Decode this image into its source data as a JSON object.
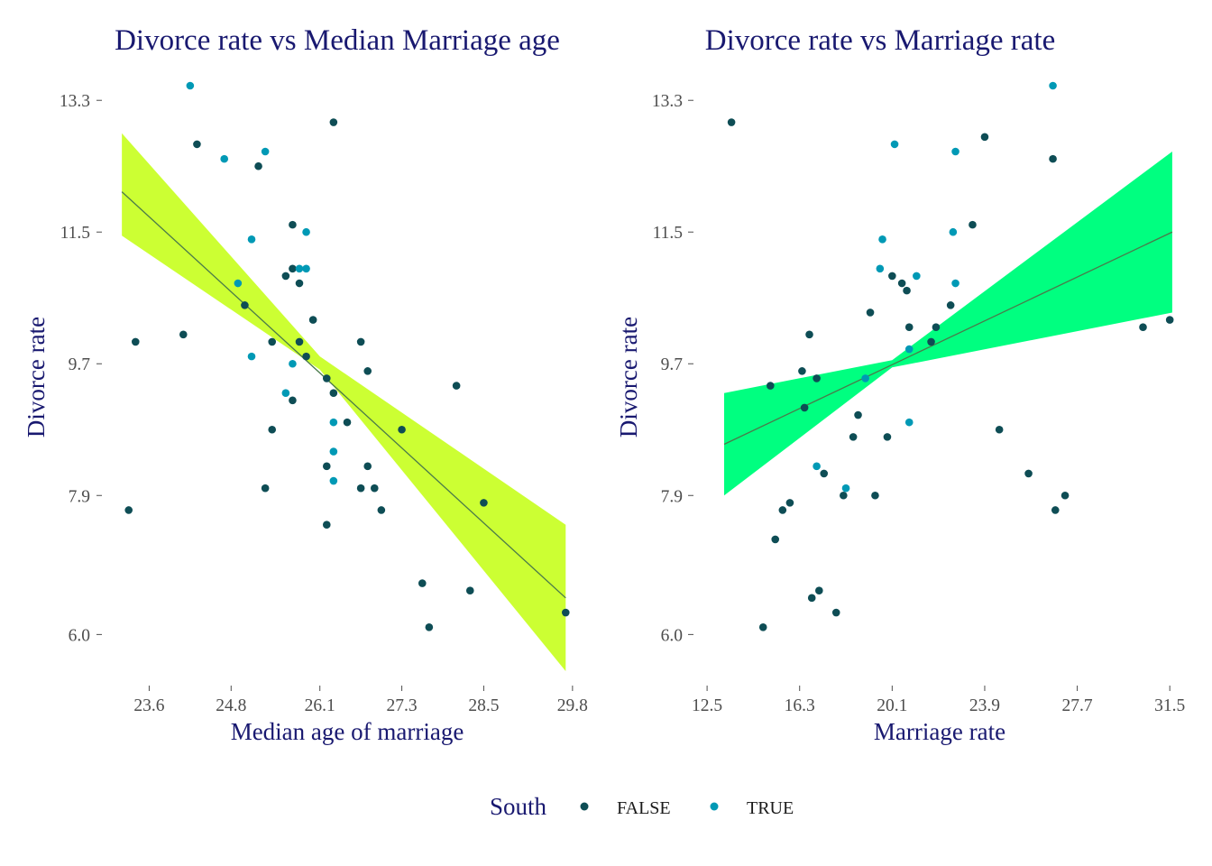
{
  "colors": {
    "title": "#191970",
    "false_point": "#0e4d55",
    "true_point": "#0099b5",
    "band_left": "#ccff33",
    "band_right": "#00ff80",
    "fit_line": "#4a7a4a",
    "tick": "#4d4d4d"
  },
  "legend": {
    "title": "South",
    "items": [
      {
        "label": "FALSE",
        "color": "#0e4d55"
      },
      {
        "label": "TRUE",
        "color": "#0099b5"
      }
    ]
  },
  "chart_data": [
    {
      "type": "scatter",
      "title": "Divorce rate vs Median Marriage age",
      "xlabel": "Median age of marriage",
      "ylabel": "Divorce rate",
      "xticks": [
        "23.6",
        "24.8",
        "26.1",
        "27.3",
        "28.5",
        "29.8"
      ],
      "yticks": [
        "6.0",
        "7.9",
        "9.7",
        "11.5",
        "13.3"
      ],
      "xlim": [
        23.0,
        30.0
      ],
      "ylim": [
        5.45,
        13.5
      ],
      "fit": {
        "x": [
          23.2,
          29.7
        ],
        "y": [
          12.05,
          6.5
        ],
        "band_x": [
          23.2,
          26.1,
          29.7
        ],
        "band_lower": [
          11.45,
          9.62,
          5.5
        ],
        "band_upper": [
          12.85,
          9.8,
          7.5
        ]
      },
      "grid": false,
      "series": [
        {
          "name": "FALSE",
          "points": [
            [
              23.3,
              7.7
            ],
            [
              23.4,
              10.0
            ],
            [
              24.1,
              10.1
            ],
            [
              24.3,
              12.7
            ],
            [
              25.0,
              10.5
            ],
            [
              25.2,
              12.4
            ],
            [
              25.3,
              8.0
            ],
            [
              25.4,
              10.0
            ],
            [
              25.4,
              8.8
            ],
            [
              25.6,
              10.9
            ],
            [
              25.7,
              11.0
            ],
            [
              25.7,
              11.6
            ],
            [
              25.7,
              9.2
            ],
            [
              25.8,
              10.8
            ],
            [
              25.8,
              10.0
            ],
            [
              25.9,
              9.8
            ],
            [
              26.0,
              10.3
            ],
            [
              26.3,
              13.0
            ],
            [
              26.2,
              9.5
            ],
            [
              26.2,
              8.3
            ],
            [
              26.2,
              7.5
            ],
            [
              26.3,
              9.3
            ],
            [
              26.5,
              8.9
            ],
            [
              26.7,
              10.0
            ],
            [
              26.7,
              8.0
            ],
            [
              26.8,
              9.6
            ],
            [
              26.8,
              8.3
            ],
            [
              26.9,
              8.0
            ],
            [
              27.0,
              7.7
            ],
            [
              27.3,
              8.8
            ],
            [
              27.6,
              6.7
            ],
            [
              27.7,
              6.1
            ],
            [
              28.1,
              9.4
            ],
            [
              28.3,
              6.6
            ],
            [
              28.5,
              7.8
            ],
            [
              29.7,
              6.3
            ]
          ]
        },
        {
          "name": "TRUE",
          "points": [
            [
              24.2,
              13.5
            ],
            [
              24.7,
              12.5
            ],
            [
              24.9,
              10.8
            ],
            [
              25.1,
              11.4
            ],
            [
              25.1,
              9.8
            ],
            [
              25.3,
              12.6
            ],
            [
              25.6,
              9.3
            ],
            [
              25.7,
              9.7
            ],
            [
              25.8,
              11.0
            ],
            [
              25.9,
              11.0
            ],
            [
              25.9,
              11.5
            ],
            [
              26.3,
              8.9
            ],
            [
              26.3,
              8.5
            ],
            [
              26.3,
              8.1
            ]
          ]
        }
      ]
    },
    {
      "type": "scatter",
      "title": "Divorce rate vs Marriage rate",
      "xlabel": "Marriage rate",
      "ylabel": "Divorce rate",
      "xticks": [
        "12.5",
        "16.3",
        "20.1",
        "23.9",
        "27.7",
        "31.5"
      ],
      "yticks": [
        "6.0",
        "7.9",
        "9.7",
        "11.5",
        "13.3"
      ],
      "xlim": [
        12.2,
        31.9
      ],
      "ylim": [
        5.45,
        13.5
      ],
      "fit": {
        "x": [
          13.2,
          31.6
        ],
        "y": [
          8.6,
          11.5
        ],
        "band_x": [
          13.2,
          20.1,
          31.6
        ],
        "band_lower": [
          7.9,
          9.65,
          10.4
        ],
        "band_upper": [
          9.3,
          9.75,
          12.6
        ]
      },
      "grid": false,
      "series": [
        {
          "name": "FALSE",
          "points": [
            [
              13.5,
              13.0
            ],
            [
              14.8,
              6.1
            ],
            [
              15.1,
              9.4
            ],
            [
              15.3,
              7.3
            ],
            [
              15.6,
              7.7
            ],
            [
              15.9,
              7.8
            ],
            [
              16.4,
              9.6
            ],
            [
              16.5,
              9.1
            ],
            [
              16.7,
              10.1
            ],
            [
              16.8,
              6.5
            ],
            [
              17.0,
              9.5
            ],
            [
              17.1,
              6.6
            ],
            [
              17.3,
              8.2
            ],
            [
              17.8,
              6.3
            ],
            [
              18.1,
              7.9
            ],
            [
              18.5,
              8.7
            ],
            [
              18.7,
              9.0
            ],
            [
              19.2,
              10.4
            ],
            [
              19.4,
              7.9
            ],
            [
              19.9,
              8.7
            ],
            [
              20.1,
              10.9
            ],
            [
              20.5,
              10.8
            ],
            [
              20.7,
              10.7
            ],
            [
              20.8,
              10.2
            ],
            [
              21.7,
              10.0
            ],
            [
              21.9,
              10.2
            ],
            [
              22.5,
              10.5
            ],
            [
              23.4,
              11.6
            ],
            [
              23.9,
              12.8
            ],
            [
              24.5,
              8.8
            ],
            [
              25.7,
              8.2
            ],
            [
              26.8,
              7.7
            ],
            [
              26.7,
              12.5
            ],
            [
              27.2,
              7.9
            ],
            [
              30.4,
              10.2
            ],
            [
              31.5,
              10.3
            ]
          ]
        },
        {
          "name": "TRUE",
          "points": [
            [
              17.0,
              8.3
            ],
            [
              18.2,
              8.0
            ],
            [
              19.0,
              9.5
            ],
            [
              19.6,
              11.0
            ],
            [
              19.7,
              11.4
            ],
            [
              20.2,
              12.7
            ],
            [
              20.8,
              9.9
            ],
            [
              20.8,
              8.9
            ],
            [
              21.1,
              10.9
            ],
            [
              22.6,
              11.5
            ],
            [
              22.7,
              12.6
            ],
            [
              22.7,
              10.8
            ],
            [
              26.7,
              13.5
            ]
          ]
        }
      ]
    }
  ]
}
